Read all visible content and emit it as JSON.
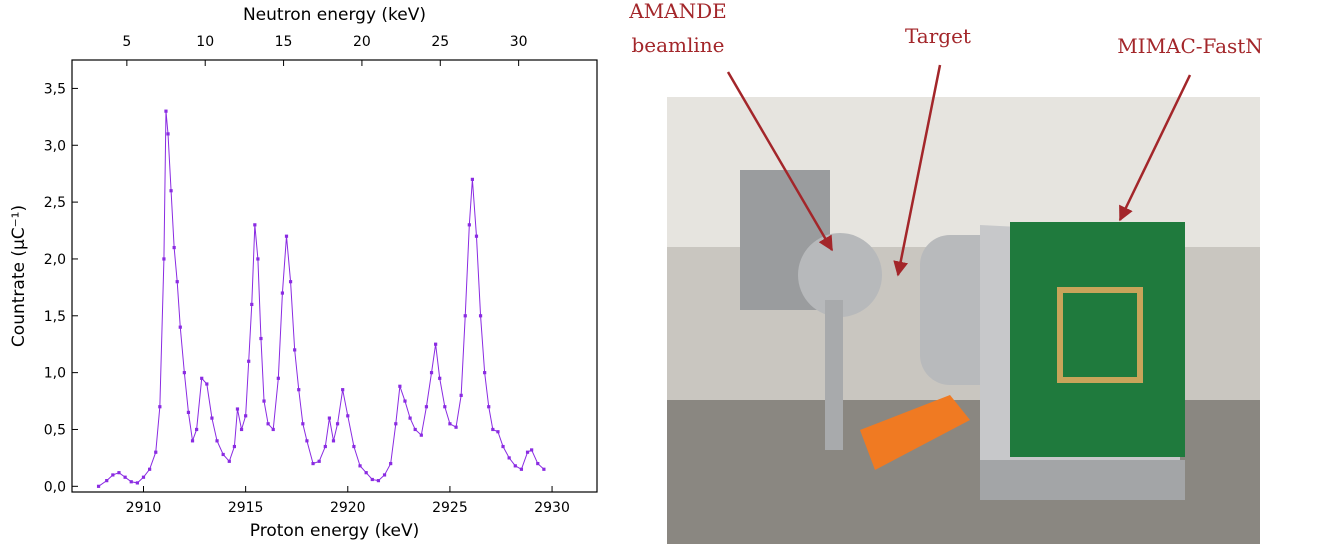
{
  "chart_data": {
    "type": "line",
    "x_label": "Proton energy (keV)",
    "y_label": "Countrate (µC⁻¹)",
    "x2_label": "Neutron energy (keV)",
    "color": "#8a2be2",
    "xlim": [
      2906.5,
      2932.2
    ],
    "xticks": [
      2910,
      2915,
      2920,
      2925,
      2930
    ],
    "x2lim": [
      1.5,
      35
    ],
    "x2ticks": [
      5,
      10,
      15,
      20,
      25,
      30
    ],
    "ylim": [
      -0.05,
      3.75
    ],
    "yticks": [
      {
        "value": 0,
        "label": "0,0"
      },
      {
        "value": 0.5,
        "label": "0,5"
      },
      {
        "value": 1,
        "label": "1,0"
      },
      {
        "value": 1.5,
        "label": "1,5"
      },
      {
        "value": 2,
        "label": "2,0"
      },
      {
        "value": 2.5,
        "label": "2,5"
      },
      {
        "value": 3,
        "label": "3,0"
      },
      {
        "value": 3.5,
        "label": "3,5"
      }
    ],
    "x": [
      2907.8,
      2908.2,
      2908.5,
      2908.8,
      2909.1,
      2909.4,
      2909.7,
      2910.0,
      2910.3,
      2910.6,
      2910.8,
      2911.0,
      2911.1,
      2911.2,
      2911.35,
      2911.5,
      2911.65,
      2911.8,
      2912.0,
      2912.2,
      2912.4,
      2912.6,
      2912.85,
      2913.1,
      2913.35,
      2913.6,
      2913.9,
      2914.2,
      2914.45,
      2914.6,
      2914.8,
      2915.0,
      2915.15,
      2915.3,
      2915.45,
      2915.6,
      2915.75,
      2915.9,
      2916.1,
      2916.35,
      2916.6,
      2916.8,
      2917.0,
      2917.2,
      2917.4,
      2917.6,
      2917.8,
      2918.0,
      2918.3,
      2918.6,
      2918.9,
      2919.1,
      2919.3,
      2919.5,
      2919.75,
      2920.0,
      2920.3,
      2920.6,
      2920.9,
      2921.2,
      2921.5,
      2921.8,
      2922.1,
      2922.35,
      2922.55,
      2922.8,
      2923.05,
      2923.3,
      2923.6,
      2923.85,
      2924.1,
      2924.3,
      2924.5,
      2924.75,
      2925.0,
      2925.3,
      2925.55,
      2925.75,
      2925.95,
      2926.1,
      2926.3,
      2926.5,
      2926.7,
      2926.9,
      2927.1,
      2927.35,
      2927.6,
      2927.9,
      2928.2,
      2928.5,
      2928.8,
      2929.0,
      2929.3,
      2929.6
    ],
    "values": [
      0.0,
      0.05,
      0.1,
      0.12,
      0.08,
      0.04,
      0.03,
      0.08,
      0.15,
      0.3,
      0.7,
      2.0,
      3.3,
      3.1,
      2.6,
      2.1,
      1.8,
      1.4,
      1.0,
      0.65,
      0.4,
      0.5,
      0.95,
      0.9,
      0.6,
      0.4,
      0.28,
      0.22,
      0.35,
      0.68,
      0.5,
      0.62,
      1.1,
      1.6,
      2.3,
      2.0,
      1.3,
      0.75,
      0.55,
      0.5,
      0.95,
      1.7,
      2.2,
      1.8,
      1.2,
      0.85,
      0.55,
      0.4,
      0.2,
      0.22,
      0.35,
      0.6,
      0.4,
      0.55,
      0.85,
      0.62,
      0.35,
      0.18,
      0.12,
      0.06,
      0.05,
      0.1,
      0.2,
      0.55,
      0.88,
      0.75,
      0.6,
      0.5,
      0.45,
      0.7,
      1.0,
      1.25,
      0.95,
      0.7,
      0.55,
      0.52,
      0.8,
      1.5,
      2.3,
      2.7,
      2.2,
      1.5,
      1.0,
      0.7,
      0.5,
      0.48,
      0.35,
      0.25,
      0.18,
      0.15,
      0.3,
      0.32,
      0.2,
      0.15
    ]
  },
  "photo": {
    "labels": [
      "AMANDE",
      "beamline",
      "Target",
      "MIMAC-FastN"
    ]
  }
}
